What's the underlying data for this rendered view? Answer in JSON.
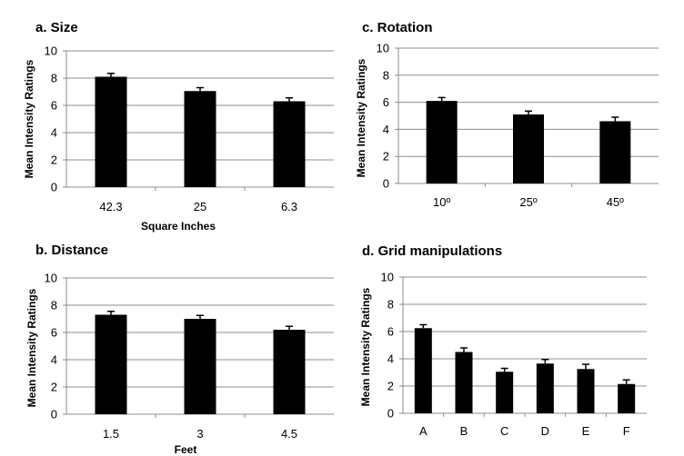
{
  "chart_data": [
    {
      "type": "bar",
      "title": "a. Size",
      "ylabel": "Mean Intensity Ratings",
      "xlabel": "Square Inches",
      "categories": [
        "42.3",
        "25",
        "6.3"
      ],
      "values": [
        8.1,
        7.05,
        6.3
      ],
      "errors": [
        0.25,
        0.25,
        0.25
      ],
      "ylim": [
        0,
        10
      ],
      "yticks": [
        0,
        2,
        4,
        6,
        8,
        10
      ],
      "grid": true,
      "bar_color": "#000000"
    },
    {
      "type": "bar",
      "title": "c. Rotation",
      "ylabel": "Mean Intensity Ratings",
      "xlabel": "",
      "categories": [
        "10º",
        "25º",
        "45º"
      ],
      "values": [
        6.1,
        5.1,
        4.6
      ],
      "errors": [
        0.25,
        0.25,
        0.3
      ],
      "ylim": [
        0,
        10
      ],
      "yticks": [
        0,
        2,
        4,
        6,
        8,
        10
      ],
      "grid": true,
      "bar_color": "#000000"
    },
    {
      "type": "bar",
      "title": "b. Distance",
      "ylabel": "Mean Intensity Ratings",
      "xlabel": "Feet",
      "categories": [
        "1.5",
        "3",
        "4.5"
      ],
      "values": [
        7.3,
        7.0,
        6.2
      ],
      "errors": [
        0.25,
        0.25,
        0.25
      ],
      "ylim": [
        0,
        10
      ],
      "yticks": [
        0,
        2,
        4,
        6,
        8,
        10
      ],
      "grid": true,
      "bar_color": "#000000"
    },
    {
      "type": "bar",
      "title": "d. Grid manipulations",
      "ylabel": "Mean Intensity Ratings",
      "xlabel": "",
      "categories": [
        "A",
        "B",
        "C",
        "D",
        "E",
        "F"
      ],
      "values": [
        6.25,
        4.5,
        3.05,
        3.65,
        3.25,
        2.15
      ],
      "errors": [
        0.25,
        0.3,
        0.25,
        0.3,
        0.35,
        0.3
      ],
      "ylim": [
        0,
        10
      ],
      "yticks": [
        0,
        2,
        4,
        6,
        8,
        10
      ],
      "grid": true,
      "bar_color": "#000000"
    }
  ]
}
